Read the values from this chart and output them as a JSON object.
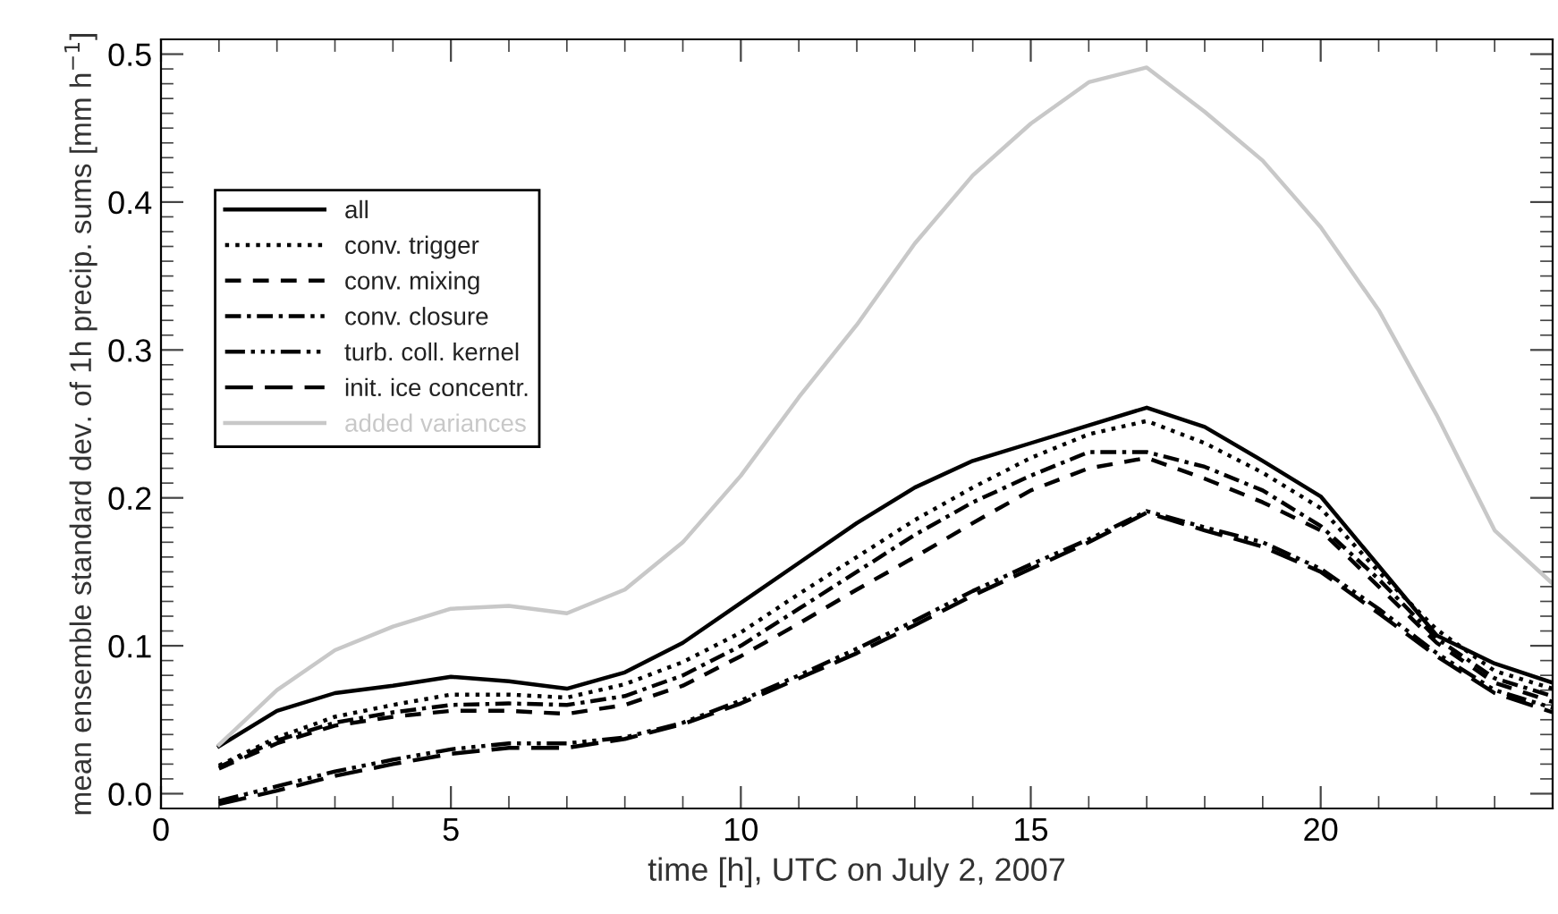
{
  "chart_data": {
    "type": "line",
    "xlabel": "time [h], UTC on July 2, 2007",
    "ylabel": "mean ensemble standard dev. of 1h precip. sums [mm h$^{−1}$]",
    "x": [
      1,
      2,
      3,
      4,
      5,
      6,
      7,
      8,
      9,
      10,
      11,
      12,
      13,
      14,
      15,
      16,
      17,
      18,
      19,
      20,
      21,
      22,
      23,
      24
    ],
    "xlim": [
      0,
      24
    ],
    "xticks": [
      0,
      5,
      10,
      15,
      20
    ],
    "ylim": [
      -0.01,
      0.51
    ],
    "yticks": [
      {
        "value": 0,
        "label": "0.0"
      },
      0.1,
      0.2,
      0.3,
      0.4,
      0.5
    ],
    "grid": false,
    "legend": "top left",
    "marker": "none",
    "series": [
      {
        "name": "all",
        "color": "#000000",
        "line_style": "solid",
        "values": [
          0.032,
          0.056,
          0.068,
          0.073,
          0.079,
          0.076,
          0.071,
          0.082,
          0.102,
          0.129,
          0.156,
          0.183,
          0.207,
          0.225,
          0.237,
          0.249,
          0.261,
          0.248,
          0.225,
          0.201,
          0.154,
          0.107,
          0.088,
          0.075
        ]
      },
      {
        "name": "conv. trigger",
        "color": "#000000",
        "line_style": "dotted",
        "values": [
          0.019,
          0.038,
          0.052,
          0.06,
          0.067,
          0.067,
          0.065,
          0.074,
          0.089,
          0.109,
          0.135,
          0.16,
          0.185,
          0.207,
          0.227,
          0.243,
          0.252,
          0.237,
          0.217,
          0.193,
          0.15,
          0.111,
          0.083,
          0.071
        ]
      },
      {
        "name": "conv. mixing",
        "color": "#000000",
        "line_style": "dashed",
        "values": [
          0.017,
          0.034,
          0.046,
          0.052,
          0.056,
          0.056,
          0.054,
          0.06,
          0.073,
          0.093,
          0.115,
          0.138,
          0.16,
          0.183,
          0.205,
          0.22,
          0.227,
          0.213,
          0.197,
          0.178,
          0.14,
          0.102,
          0.075,
          0.062
        ]
      },
      {
        "name": "conv. closure",
        "color": "#000000",
        "line_style": "dashdot",
        "values": [
          0.018,
          0.036,
          0.048,
          0.055,
          0.06,
          0.061,
          0.06,
          0.066,
          0.08,
          0.1,
          0.125,
          0.15,
          0.175,
          0.197,
          0.215,
          0.231,
          0.231,
          0.221,
          0.205,
          0.181,
          0.145,
          0.105,
          0.078,
          0.066
        ]
      },
      {
        "name": "turb. coll. kernel",
        "color": "#000000",
        "line_style": "dashdotdotted",
        "values": [
          -0.005,
          0.005,
          0.015,
          0.023,
          0.03,
          0.034,
          0.034,
          0.038,
          0.048,
          0.063,
          0.08,
          0.098,
          0.117,
          0.137,
          0.155,
          0.172,
          0.191,
          0.18,
          0.17,
          0.152,
          0.125,
          0.095,
          0.07,
          0.058
        ]
      },
      {
        "name": "init. ice concentr.",
        "color": "#000000",
        "line_style": "longdash",
        "values": [
          -0.007,
          0.002,
          0.012,
          0.02,
          0.027,
          0.031,
          0.031,
          0.037,
          0.047,
          0.061,
          0.078,
          0.095,
          0.114,
          0.134,
          0.152,
          0.17,
          0.19,
          0.178,
          0.167,
          0.15,
          0.122,
          0.093,
          0.068,
          0.055
        ]
      },
      {
        "name": "added variances",
        "color": "#c8c8c8",
        "line_style": "solid",
        "values": [
          0.033,
          0.07,
          0.097,
          0.113,
          0.125,
          0.127,
          0.122,
          0.138,
          0.17,
          0.215,
          0.268,
          0.317,
          0.372,
          0.418,
          0.453,
          0.481,
          0.491,
          0.461,
          0.428,
          0.383,
          0.327,
          0.256,
          0.178,
          0.142
        ]
      }
    ]
  }
}
